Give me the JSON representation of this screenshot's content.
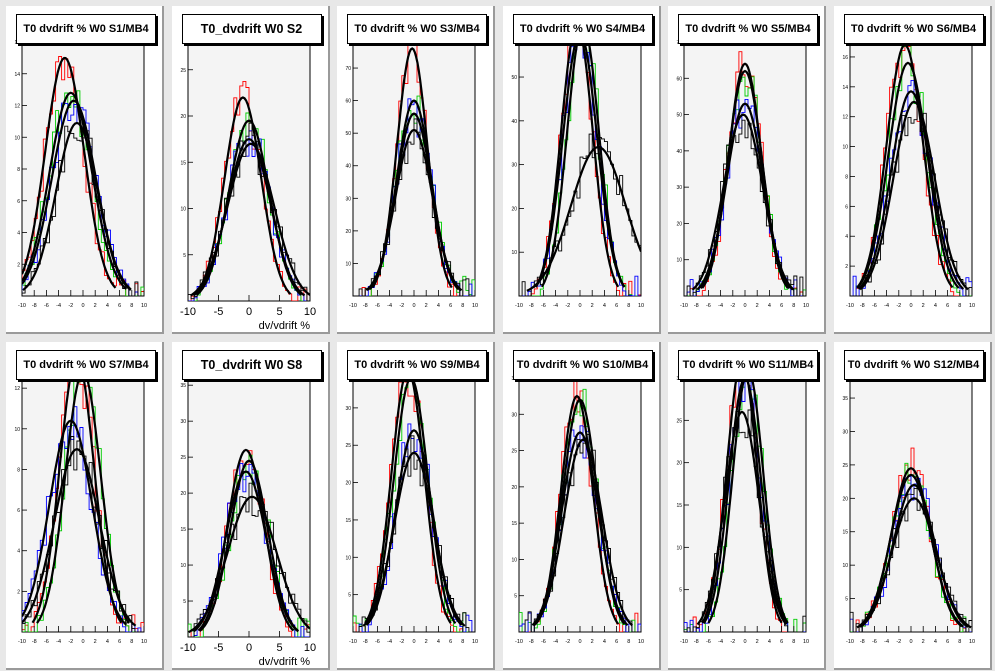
{
  "canvas": {
    "background": "#e8e8e8",
    "pad_background": "#ffffff",
    "frame_background": "#f4f4f4"
  },
  "series_colors": [
    "#ff0000",
    "#00cc00",
    "#0000ff",
    "#000000"
  ],
  "chart_data": [
    {
      "type": "line",
      "title": "T0 dvdrift % W0 S1/MB4",
      "xlabel": "",
      "xlim": [
        -10,
        10
      ],
      "ylim": [
        0,
        16
      ],
      "x_ticks": [
        "-10",
        "-8",
        "-6",
        "-4",
        "-2",
        "0",
        "2",
        "4",
        "6",
        "8",
        "10"
      ],
      "y_ticks": [
        "2",
        "4",
        "6",
        "8",
        "10",
        "12",
        "14",
        "16"
      ],
      "fits": [
        {
          "mean": -3.0,
          "sigma": 3.2,
          "peak": 15.0
        },
        {
          "mean": -2.0,
          "sigma": 3.5,
          "peak": 12.8
        },
        {
          "mean": -1.5,
          "sigma": 3.6,
          "peak": 12.3
        },
        {
          "mean": -1.0,
          "sigma": 3.4,
          "peak": 10.9
        }
      ]
    },
    {
      "type": "line",
      "title": "T0_dvdrift W0 S2",
      "xlabel": "dv/vdrift %",
      "xlim": [
        -10,
        10
      ],
      "ylim": [
        0,
        28
      ],
      "x_ticks": [
        "-10",
        "-5",
        "0",
        "5",
        "10"
      ],
      "y_ticks": [
        "5",
        "10",
        "15",
        "20",
        "25"
      ],
      "fits": [
        {
          "mean": -1.0,
          "sigma": 3.0,
          "peak": 22.0
        },
        {
          "mean": 0.0,
          "sigma": 3.3,
          "peak": 19.5
        },
        {
          "mean": 0.0,
          "sigma": 3.5,
          "peak": 17.5
        },
        {
          "mean": 0.3,
          "sigma": 3.8,
          "peak": 17.0
        }
      ]
    },
    {
      "type": "line",
      "title": "T0 dvdrift % W0 S3/MB4",
      "xlabel": "",
      "xlim": [
        -10,
        10
      ],
      "ylim": [
        0,
        78
      ],
      "x_ticks": [
        "-10",
        "-8",
        "-6",
        "-4",
        "-2",
        "0",
        "2",
        "4",
        "6",
        "8",
        "10"
      ],
      "y_ticks": [
        "10",
        "20",
        "30",
        "40",
        "50",
        "60",
        "70"
      ],
      "fits": [
        {
          "mean": -0.3,
          "sigma": 2.5,
          "peak": 76.0
        },
        {
          "mean": 0.0,
          "sigma": 2.8,
          "peak": 60.0
        },
        {
          "mean": 0.0,
          "sigma": 2.9,
          "peak": 56.0
        },
        {
          "mean": 0.0,
          "sigma": 3.0,
          "peak": 51.0
        }
      ]
    },
    {
      "type": "line",
      "title": "T0 dvdrift % W0 S4/MB4",
      "xlabel": "",
      "xlim": [
        -10,
        10
      ],
      "ylim": [
        0,
        58
      ],
      "x_ticks": [
        "-10",
        "-8",
        "-6",
        "-4",
        "-2",
        "0",
        "2",
        "4",
        "6",
        "8",
        "10"
      ],
      "y_ticks": [
        "10",
        "20",
        "30",
        "40",
        "50"
      ],
      "fits": [
        {
          "mean": -0.5,
          "sigma": 2.6,
          "peak": 62.0
        },
        {
          "mean": 0.5,
          "sigma": 2.6,
          "peak": 62.0
        },
        {
          "mean": 0.0,
          "sigma": 2.8,
          "peak": 60.0
        },
        {
          "mean": 3.0,
          "sigma": 4.5,
          "peak": 34.0
        }
      ]
    },
    {
      "type": "line",
      "title": "T0 dvdrift % W0 S5/MB4",
      "xlabel": "",
      "xlim": [
        -10,
        10
      ],
      "ylim": [
        0,
        70
      ],
      "x_ticks": [
        "-10",
        "-8",
        "-6",
        "-4",
        "-2",
        "0",
        "2",
        "4",
        "6",
        "8",
        "10"
      ],
      "y_ticks": [
        "10",
        "20",
        "30",
        "40",
        "50",
        "60",
        "70"
      ],
      "fits": [
        {
          "mean": 0.0,
          "sigma": 2.7,
          "peak": 64.0
        },
        {
          "mean": 0.0,
          "sigma": 2.8,
          "peak": 62.0
        },
        {
          "mean": 0.0,
          "sigma": 3.0,
          "peak": 53.0
        },
        {
          "mean": -0.3,
          "sigma": 3.2,
          "peak": 50.0
        }
      ]
    },
    {
      "type": "line",
      "title": "T0 dvdrift % W0 S6/MB4",
      "xlabel": "",
      "xlim": [
        -10,
        10
      ],
      "ylim": [
        0,
        17
      ],
      "x_ticks": [
        "-10",
        "-8",
        "-6",
        "-4",
        "-2",
        "0",
        "2",
        "4",
        "6",
        "8",
        "10"
      ],
      "y_ticks": [
        "2",
        "4",
        "6",
        "8",
        "10",
        "12",
        "14",
        "16"
      ],
      "fits": [
        {
          "mean": -1.0,
          "sigma": 3.0,
          "peak": 16.8
        },
        {
          "mean": -0.5,
          "sigma": 3.2,
          "peak": 15.6
        },
        {
          "mean": 0.0,
          "sigma": 3.3,
          "peak": 13.7
        },
        {
          "mean": 0.5,
          "sigma": 3.4,
          "peak": 13.0
        }
      ]
    },
    {
      "type": "line",
      "title": "T0 dvdrift % W0 S7/MB4",
      "xlabel": "",
      "xlim": [
        -10,
        10
      ],
      "ylim": [
        0,
        12.5
      ],
      "x_ticks": [
        "-10",
        "-8",
        "-6",
        "-4",
        "-2",
        "0",
        "2",
        "4",
        "6",
        "8",
        "10"
      ],
      "y_ticks": [
        "2",
        "4",
        "6",
        "8",
        "10",
        "12"
      ],
      "fits": [
        {
          "mean": -1.0,
          "sigma": 2.8,
          "peak": 13.5
        },
        {
          "mean": 0.0,
          "sigma": 2.9,
          "peak": 12.8
        },
        {
          "mean": -2.0,
          "sigma": 3.5,
          "peak": 10.4
        },
        {
          "mean": -1.0,
          "sigma": 3.7,
          "peak": 9.0
        }
      ]
    },
    {
      "type": "line",
      "title": "T0_dvdrift W0 S8",
      "xlabel": "dv/vdrift %",
      "xlim": [
        -10,
        10
      ],
      "ylim": [
        0,
        36
      ],
      "x_ticks": [
        "-10",
        "-5",
        "0",
        "5",
        "10"
      ],
      "y_ticks": [
        "5",
        "10",
        "15",
        "20",
        "25",
        "30",
        "35"
      ],
      "fits": [
        {
          "mean": -0.5,
          "sigma": 3.0,
          "peak": 26.0
        },
        {
          "mean": 0.0,
          "sigma": 3.1,
          "peak": 24.5
        },
        {
          "mean": -0.5,
          "sigma": 3.3,
          "peak": 23.0
        },
        {
          "mean": 0.5,
          "sigma": 4.0,
          "peak": 19.5
        }
      ]
    },
    {
      "type": "line",
      "title": "T0 dvdrift % W0 S9/MB4",
      "xlabel": "",
      "xlim": [
        -10,
        10
      ],
      "ylim": [
        0,
        34
      ],
      "x_ticks": [
        "-10",
        "-8",
        "-6",
        "-4",
        "-2",
        "0",
        "2",
        "4",
        "6",
        "8",
        "10"
      ],
      "y_ticks": [
        "5",
        "10",
        "15",
        "20",
        "25",
        "30"
      ],
      "fits": [
        {
          "mean": -1.0,
          "sigma": 2.7,
          "peak": 35.0
        },
        {
          "mean": -0.5,
          "sigma": 2.8,
          "peak": 34.0
        },
        {
          "mean": 0.0,
          "sigma": 3.0,
          "peak": 27.0
        },
        {
          "mean": 0.0,
          "sigma": 3.2,
          "peak": 24.0
        }
      ]
    },
    {
      "type": "line",
      "title": "T0 dvdrift % W0 S10/MB4",
      "xlabel": "",
      "xlim": [
        -10,
        10
      ],
      "ylim": [
        0,
        35
      ],
      "x_ticks": [
        "-10",
        "-8",
        "-6",
        "-4",
        "-2",
        "0",
        "2",
        "4",
        "6",
        "8",
        "10"
      ],
      "y_ticks": [
        "5",
        "10",
        "15",
        "20",
        "25",
        "30",
        "35"
      ],
      "fits": [
        {
          "mean": -0.5,
          "sigma": 2.6,
          "peak": 32.5
        },
        {
          "mean": 0.0,
          "sigma": 2.8,
          "peak": 32.0
        },
        {
          "mean": 0.0,
          "sigma": 3.0,
          "peak": 27.5
        },
        {
          "mean": 0.5,
          "sigma": 3.1,
          "peak": 26.5
        }
      ]
    },
    {
      "type": "line",
      "title": "T0 dvdrift % W0 S11/MB4",
      "xlabel": "",
      "xlim": [
        -10,
        10
      ],
      "ylim": [
        0,
        30
      ],
      "x_ticks": [
        "-10",
        "-8",
        "-6",
        "-4",
        "-2",
        "0",
        "2",
        "4",
        "6",
        "8",
        "10"
      ],
      "y_ticks": [
        "5",
        "10",
        "15",
        "20",
        "25",
        "30"
      ],
      "fits": [
        {
          "mean": -0.5,
          "sigma": 2.5,
          "peak": 32.0
        },
        {
          "mean": 0.5,
          "sigma": 2.5,
          "peak": 31.0
        },
        {
          "mean": 0.0,
          "sigma": 2.6,
          "peak": 30.0
        },
        {
          "mean": -0.5,
          "sigma": 2.8,
          "peak": 26.0
        }
      ]
    },
    {
      "type": "line",
      "title": "T0 dvdrift % W0 S12/MB4",
      "xlabel": "",
      "xlim": [
        -10,
        10
      ],
      "ylim": [
        0,
        38
      ],
      "x_ticks": [
        "-10",
        "-8",
        "-6",
        "-4",
        "-2",
        "0",
        "2",
        "4",
        "6",
        "8",
        "10"
      ],
      "y_ticks": [
        "5",
        "10",
        "15",
        "20",
        "25",
        "30",
        "35"
      ],
      "fits": [
        {
          "mean": 0.0,
          "sigma": 3.2,
          "peak": 24.5
        },
        {
          "mean": 0.0,
          "sigma": 3.3,
          "peak": 23.5
        },
        {
          "mean": 0.5,
          "sigma": 3.4,
          "peak": 22.0
        },
        {
          "mean": 0.5,
          "sigma": 3.6,
          "peak": 20.0
        }
      ]
    }
  ]
}
